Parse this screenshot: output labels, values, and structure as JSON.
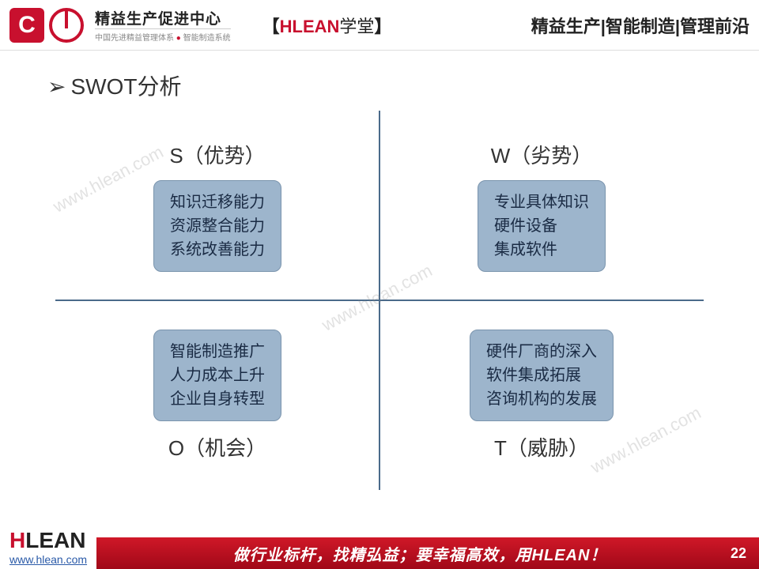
{
  "header": {
    "logo_cn": "精益生产促进中心",
    "logo_sub_a": "中国先进精益管理体系",
    "logo_sub_b": "智能制造系统",
    "mid_bracket_l": "【",
    "mid_red": "HLEAN",
    "mid_black": "学堂",
    "mid_bracket_r": "】",
    "right": "精益生产|智能制造|管理前沿"
  },
  "section": {
    "arrow": "➢",
    "title": "SWOT分析"
  },
  "swot": {
    "axis_color": "#4a6a8a",
    "box_bg": "#9db5cc",
    "box_border": "#7a94ad",
    "box_text": "#1a2b44",
    "s": {
      "label": "S（优势）",
      "lines": [
        "知识迁移能力",
        "资源整合能力",
        "系统改善能力"
      ]
    },
    "w": {
      "label": "W（劣势）",
      "lines": [
        "专业具体知识",
        "硬件设备",
        "集成软件"
      ]
    },
    "o": {
      "label": "O（机会）",
      "lines": [
        "智能制造推广",
        "人力成本上升",
        "企业自身转型"
      ]
    },
    "t": {
      "label": "T（威胁）",
      "lines": [
        "硬件厂商的深入",
        "软件集成拓展",
        "咨询机构的发展"
      ]
    }
  },
  "watermark": "www.hlean.com",
  "footer": {
    "brand_h": "H",
    "brand_lean": "LEAN",
    "url": "www.hlean.com",
    "slogan": "做行业标杆，找精弘益；要幸福高效，用HLEAN！",
    "page": "22",
    "bar_bg": "#b01020"
  }
}
